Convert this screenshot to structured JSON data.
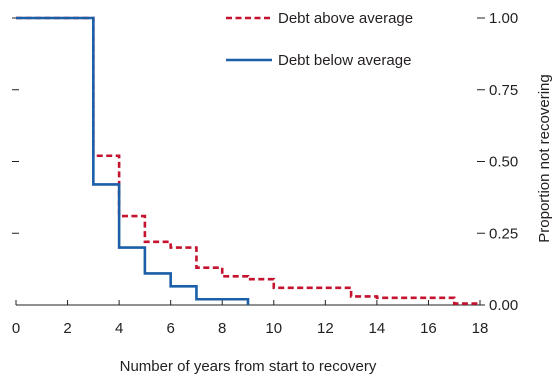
{
  "chart_data": {
    "type": "line",
    "step": true,
    "title": "",
    "xlabel": "Number of years from start to recovery",
    "ylabel": "Proportion not recovering",
    "xlim": [
      0,
      18
    ],
    "ylim": [
      0,
      1
    ],
    "x_ticks": [
      0,
      2,
      4,
      6,
      8,
      10,
      12,
      14,
      16,
      18
    ],
    "x_tick_labels": [
      "0",
      "2",
      "4",
      "6",
      "8",
      "10",
      "12",
      "14",
      "16",
      "18"
    ],
    "y_ticks": [
      0,
      0.25,
      0.5,
      0.75,
      1.0
    ],
    "y_tick_labels": [
      "0.00",
      "0.25",
      "0.50",
      "0.75",
      "1.00"
    ],
    "y_axis_side": "right",
    "grid": false,
    "legend_position": "top-right",
    "series": [
      {
        "name": "Debt above average",
        "color": "#c4122f",
        "style": "dashed",
        "points": [
          [
            0,
            1.0
          ],
          [
            3,
            0.52
          ],
          [
            4,
            0.31
          ],
          [
            5,
            0.22
          ],
          [
            6,
            0.2
          ],
          [
            7,
            0.13
          ],
          [
            8,
            0.1
          ],
          [
            9,
            0.09
          ],
          [
            10,
            0.06
          ],
          [
            13,
            0.03
          ],
          [
            14,
            0.025
          ],
          [
            17,
            0.005
          ],
          [
            18,
            0.005
          ]
        ]
      },
      {
        "name": "Debt below average",
        "color": "#1a5fa8",
        "style": "solid",
        "points": [
          [
            0,
            1.0
          ],
          [
            3,
            0.42
          ],
          [
            4,
            0.2
          ],
          [
            5,
            0.11
          ],
          [
            6,
            0.065
          ],
          [
            7,
            0.02
          ],
          [
            9,
            0.0
          ]
        ]
      }
    ]
  }
}
